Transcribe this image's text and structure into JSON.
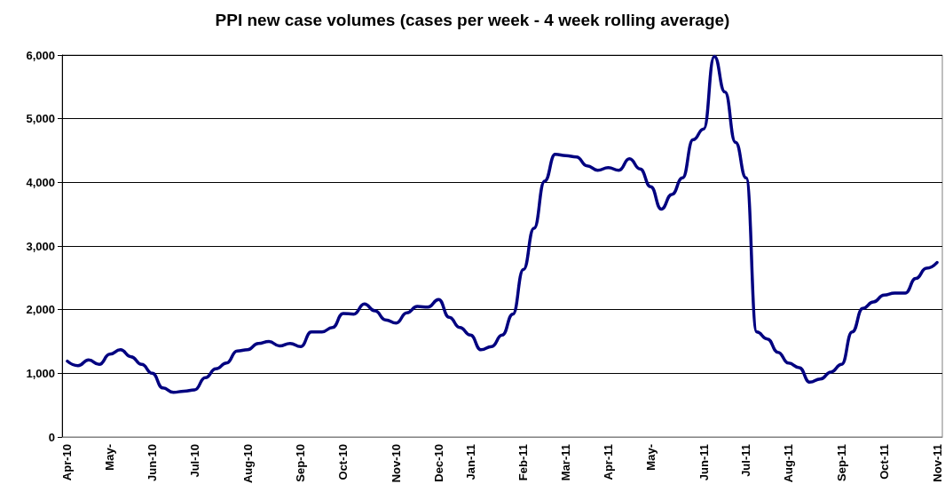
{
  "chart_data": {
    "type": "line",
    "title": "PPI new case volumes (cases per week - 4 week rolling average)",
    "categories": [
      "Apr-10",
      null,
      null,
      null,
      "May-",
      null,
      null,
      null,
      "Jun-10",
      null,
      null,
      null,
      "Jul-10",
      null,
      null,
      null,
      null,
      "Aug-10",
      null,
      null,
      null,
      null,
      "Sep-10",
      null,
      null,
      null,
      "Oct-10",
      null,
      null,
      null,
      null,
      "Nov-10",
      null,
      null,
      null,
      "Dec-10",
      null,
      null,
      "Jan-11",
      null,
      null,
      null,
      null,
      "Feb-11",
      null,
      null,
      null,
      "Mar-11",
      null,
      null,
      null,
      "Apr-11",
      null,
      null,
      null,
      "May-",
      null,
      null,
      null,
      null,
      "Jun-11",
      null,
      null,
      null,
      "Jul-11",
      null,
      null,
      null,
      "Aug-11",
      null,
      null,
      null,
      null,
      "Sep-11",
      null,
      null,
      null,
      "Oct-11",
      null,
      null,
      null,
      null,
      "Nov-11"
    ],
    "series": [
      {
        "color": "#000080",
        "values": [
          1190,
          1120,
          1210,
          1140,
          1300,
          1370,
          1260,
          1140,
          1000,
          770,
          700,
          720,
          740,
          930,
          1070,
          1160,
          1350,
          1370,
          1470,
          1500,
          1430,
          1470,
          1420,
          1650,
          1650,
          1720,
          1940,
          1930,
          2090,
          1980,
          1840,
          1790,
          1950,
          2050,
          2040,
          2160,
          1880,
          1720,
          1600,
          1370,
          1420,
          1600,
          1930,
          2630,
          3280,
          4020,
          4440,
          4420,
          4400,
          4260,
          4190,
          4230,
          4190,
          4370,
          4210,
          3930,
          3580,
          3810,
          4070,
          4670,
          4840,
          5980,
          5420,
          4630,
          4070,
          1650,
          1540,
          1330,
          1160,
          1090,
          860,
          910,
          1020,
          1140,
          1650,
          2020,
          2120,
          2230,
          2260,
          2260,
          2490,
          2650,
          2740
        ]
      }
    ],
    "ylim": [
      0,
      6000
    ],
    "yticks": [
      {
        "value": 0,
        "label": "0"
      },
      {
        "value": 1000,
        "label": "1,000"
      },
      {
        "value": 2000,
        "label": "2,000"
      },
      {
        "value": 3000,
        "label": "3,000"
      },
      {
        "value": 4000,
        "label": "4,000"
      },
      {
        "value": 5000,
        "label": "5,000"
      },
      {
        "value": 6000,
        "label": "6,000"
      }
    ],
    "grid": "y",
    "marker": "none",
    "line_style": "solid"
  }
}
